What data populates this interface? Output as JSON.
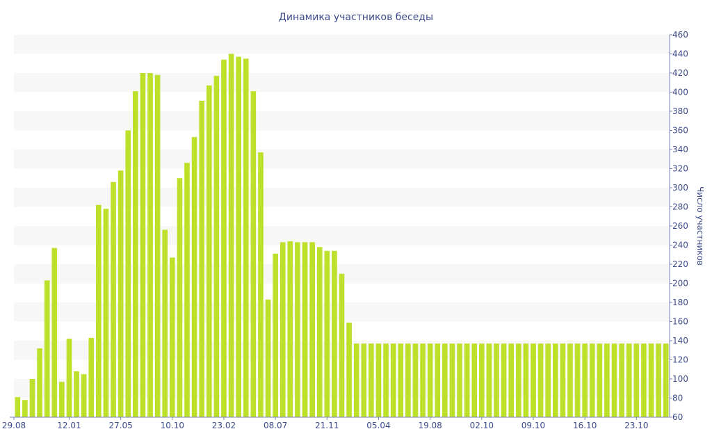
{
  "chart_data": {
    "type": "bar",
    "title": "Динамика участников беседы",
    "xlabel": "",
    "ylabel": "Число участников",
    "ylim": [
      60,
      460
    ],
    "y_ticks": [
      60,
      80,
      100,
      120,
      140,
      160,
      180,
      200,
      220,
      240,
      260,
      280,
      300,
      320,
      340,
      360,
      380,
      400,
      420,
      440,
      460
    ],
    "x_tick_labels": [
      "29.08",
      "12.01",
      "27.05",
      "10.10",
      "23.02",
      "08.07",
      "21.11",
      "05.04",
      "19.08",
      "02.10",
      "09.10",
      "16.10",
      "23.10"
    ],
    "x_tick_bar_index": [
      0,
      7,
      14,
      21,
      28,
      35,
      42,
      49,
      56,
      63,
      70,
      77,
      84
    ],
    "grid": "horizontal alternating bands",
    "y_axis_position": "right",
    "bar_color": "#bde02a",
    "values": [
      81,
      78,
      100,
      132,
      203,
      237,
      97,
      142,
      108,
      105,
      143,
      282,
      278,
      306,
      318,
      360,
      401,
      420,
      420,
      418,
      256,
      227,
      310,
      326,
      353,
      391,
      407,
      417,
      434,
      440,
      437,
      435,
      401,
      337,
      183,
      231,
      243,
      244,
      243,
      243,
      243,
      238,
      234,
      234,
      210,
      159,
      137,
      137,
      137,
      137,
      137,
      137,
      137,
      137,
      137,
      137,
      137,
      137,
      137,
      137,
      137,
      137,
      137,
      137,
      137,
      137,
      137,
      137,
      137,
      137,
      137,
      137,
      137,
      137,
      137,
      137,
      137,
      137,
      137,
      137,
      137,
      137,
      137,
      137,
      137,
      137,
      137,
      137,
      137
    ]
  }
}
